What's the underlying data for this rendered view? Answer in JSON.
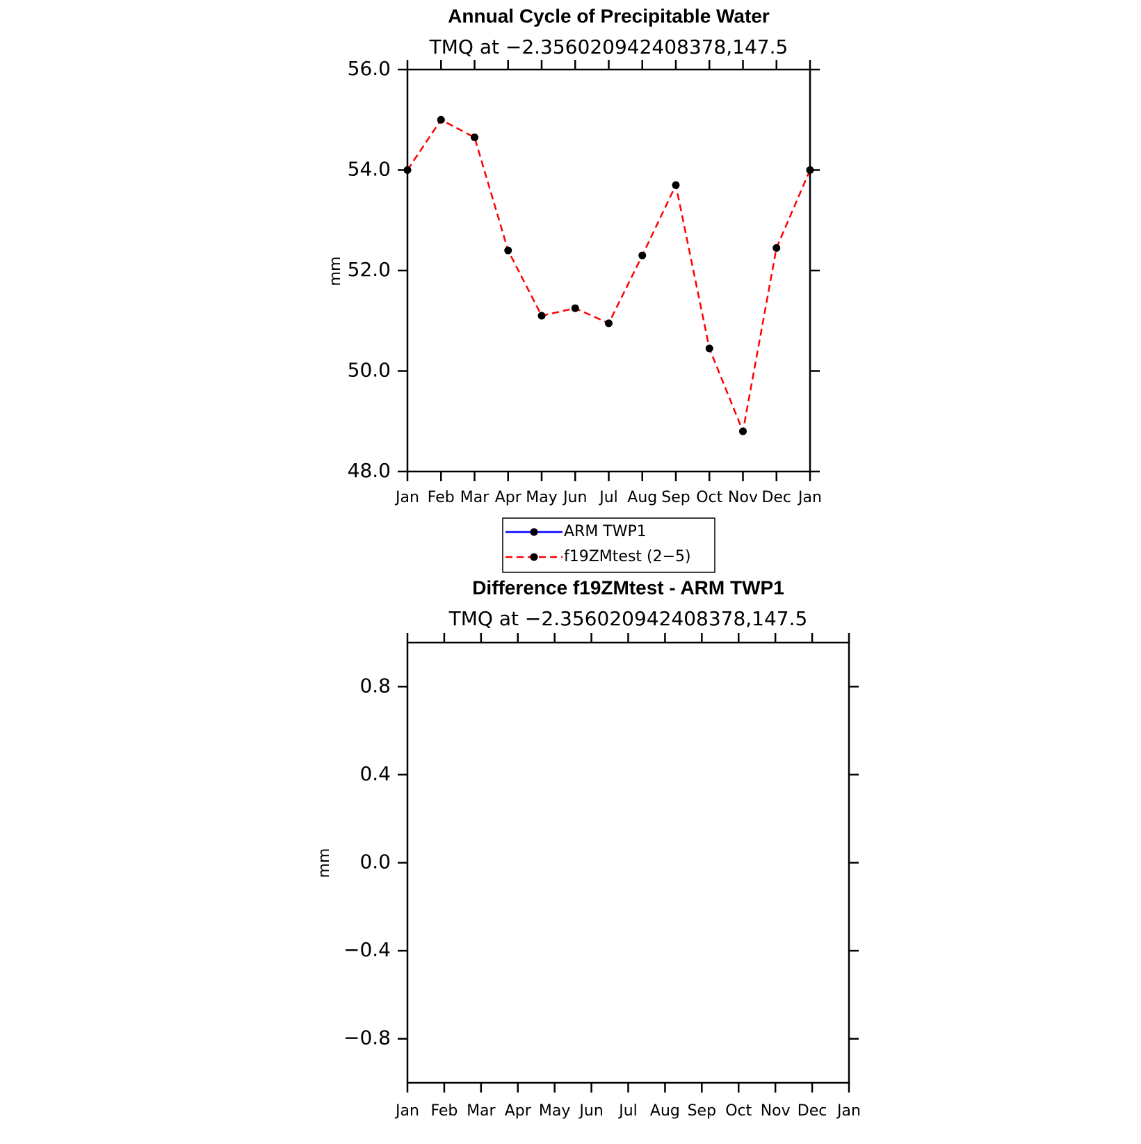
{
  "chart_data": [
    {
      "type": "line",
      "title": "Annual Cycle of Precipitable Water",
      "subtitle": "TMQ at −2.356020942408378,147.5",
      "y_label": "mm",
      "categories": [
        "Jan",
        "Feb",
        "Mar",
        "Apr",
        "May",
        "Jun",
        "Jul",
        "Aug",
        "Sep",
        "Oct",
        "Nov",
        "Dec",
        "Jan"
      ],
      "series": [
        {
          "name": "ARM TWP1",
          "color": "#0000ff",
          "dashed": false,
          "values": [
            null,
            null,
            null,
            null,
            null,
            null,
            null,
            null,
            null,
            null,
            null,
            null,
            null
          ]
        },
        {
          "name": "f19ZMtest (2−5)",
          "color": "#ff0000",
          "dashed": true,
          "values": [
            54.0,
            55.0,
            54.65,
            52.4,
            51.1,
            51.25,
            50.95,
            52.3,
            53.7,
            50.45,
            48.8,
            52.45,
            54.0
          ]
        }
      ],
      "marker_color": "#000000",
      "ylim": [
        48,
        56
      ],
      "yticks": [
        {
          "value": 48,
          "label": "48.0"
        },
        {
          "value": 50,
          "label": "50.0"
        },
        {
          "value": 52,
          "label": "52.0"
        },
        {
          "value": 54,
          "label": "54.0"
        },
        {
          "value": 56,
          "label": "56.0"
        }
      ],
      "legend": "below"
    },
    {
      "type": "line",
      "title": "Difference f19ZMtest - ARM TWP1",
      "subtitle": "TMQ at −2.356020942408378,147.5",
      "y_label": "mm",
      "categories": [
        "Jan",
        "Feb",
        "Mar",
        "Apr",
        "May",
        "Jun",
        "Jul",
        "Aug",
        "Sep",
        "Oct",
        "Nov",
        "Dec",
        "Jan"
      ],
      "series": [],
      "ylim": [
        -1,
        1
      ],
      "yticks": [
        {
          "value": -0.8,
          "label": "−0.8"
        },
        {
          "value": -0.4,
          "label": "−0.4"
        },
        {
          "value": 0,
          "label": "0.0"
        },
        0.4,
        0.8
      ]
    }
  ]
}
